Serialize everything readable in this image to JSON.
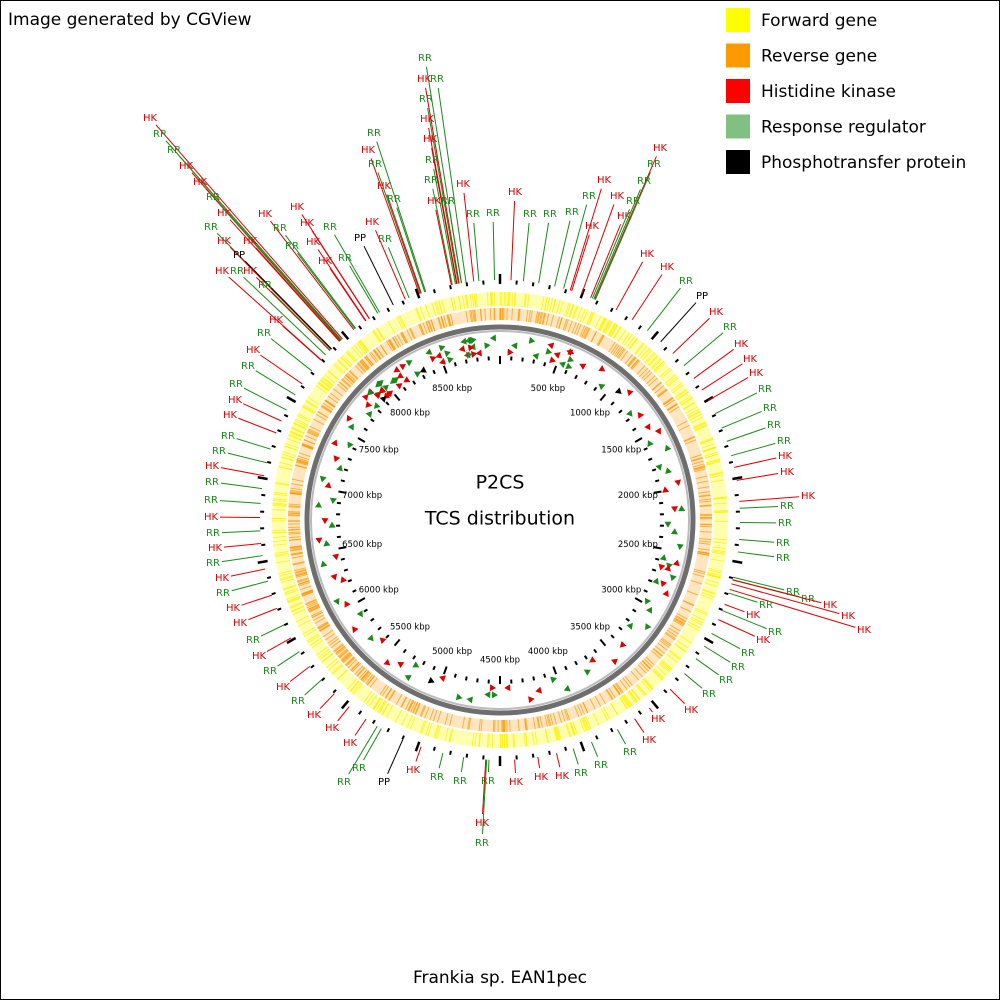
{
  "header": {
    "title": "Image generated by CGView"
  },
  "legend": [
    {
      "label": "Forward gene",
      "color": "#ffff00"
    },
    {
      "label": "Reverse gene",
      "color": "#ff9900"
    },
    {
      "label": "Histidine kinase",
      "color": "#ff0000"
    },
    {
      "label": "Response regulator",
      "color": "#80c080"
    },
    {
      "label": "Phosphotransfer protein",
      "color": "#000000"
    }
  ],
  "map": {
    "title": "P2CS",
    "subtitle": "TCS distribution",
    "scale_labels": [
      "500 kbp",
      "1000 kbp",
      "1500 kbp",
      "2000 kbp",
      "2500 kbp",
      "3000 kbp",
      "3500 kbp",
      "4000 kbp",
      "4500 kbp",
      "5000 kbp",
      "5500 kbp",
      "6000 kbp",
      "6500 kbp",
      "7000 kbp",
      "7500 kbp",
      "8000 kbp",
      "8500 kbp"
    ],
    "features": [
      {
        "label": "HK",
        "color": "#e00000"
      },
      {
        "label": "RR",
        "color": "#1a8a1a"
      },
      {
        "label": "RR",
        "color": "#1a8a1a"
      },
      {
        "label": "HK",
        "color": "#e00000"
      },
      {
        "label": "HK",
        "color": "#e00000"
      },
      {
        "label": "RR",
        "color": "#1a8a1a"
      },
      {
        "label": "HK",
        "color": "#e00000"
      },
      {
        "label": "RR",
        "color": "#1a8a1a"
      },
      {
        "label": "HK",
        "color": "#e00000"
      },
      {
        "label": "PP",
        "color": "#000000"
      },
      {
        "label": "HK",
        "color": "#e00000"
      },
      {
        "label": "HK",
        "color": "#e00000"
      },
      {
        "label": "RR",
        "color": "#1a8a1a"
      },
      {
        "label": "HK",
        "color": "#e00000"
      },
      {
        "label": "RR",
        "color": "#1a8a1a"
      },
      {
        "label": "HK",
        "color": "#e00000"
      },
      {
        "label": "RR",
        "color": "#1a8a1a"
      },
      {
        "label": "HK",
        "color": "#e00000"
      },
      {
        "label": "HK",
        "color": "#e00000"
      },
      {
        "label": "RR",
        "color": "#1a8a1a"
      },
      {
        "label": "HK",
        "color": "#e00000"
      },
      {
        "label": "RR",
        "color": "#1a8a1a"
      },
      {
        "label": "HK",
        "color": "#e00000"
      },
      {
        "label": "RR",
        "color": "#1a8a1a"
      },
      {
        "label": "PP",
        "color": "#000000"
      },
      {
        "label": "HK",
        "color": "#e00000"
      },
      {
        "label": "RR",
        "color": "#1a8a1a"
      },
      {
        "label": "RR",
        "color": "#1a8a1a"
      },
      {
        "label": "HK",
        "color": "#e00000"
      },
      {
        "label": "RR",
        "color": "#1a8a1a"
      },
      {
        "label": "HK",
        "color": "#e00000"
      },
      {
        "label": "RR",
        "color": "#1a8a1a"
      },
      {
        "label": "RR",
        "color": "#1a8a1a"
      },
      {
        "label": "HK",
        "color": "#e00000"
      },
      {
        "label": "RR",
        "color": "#1a8a1a"
      },
      {
        "label": "RR",
        "color": "#1a8a1a"
      },
      {
        "label": "HK",
        "color": "#e00000"
      },
      {
        "label": "HK",
        "color": "#e00000"
      },
      {
        "label": "RR",
        "color": "#1a8a1a"
      },
      {
        "label": "RR",
        "color": "#1a8a1a"
      },
      {
        "label": "HK",
        "color": "#e00000"
      },
      {
        "label": "RR",
        "color": "#1a8a1a"
      },
      {
        "label": "HK",
        "color": "#e00000"
      },
      {
        "label": "RR",
        "color": "#1a8a1a"
      },
      {
        "label": "RR",
        "color": "#1a8a1a"
      },
      {
        "label": "HK",
        "color": "#e00000"
      },
      {
        "label": "RR",
        "color": "#1a8a1a"
      },
      {
        "label": "RR",
        "color": "#1a8a1a"
      },
      {
        "label": "RR",
        "color": "#1a8a1a"
      },
      {
        "label": "RR",
        "color": "#1a8a1a"
      },
      {
        "label": "HK",
        "color": "#e00000"
      },
      {
        "label": "HK",
        "color": "#e00000"
      },
      {
        "label": "HK",
        "color": "#e00000"
      },
      {
        "label": "HK",
        "color": "#e00000"
      },
      {
        "label": "RR",
        "color": "#1a8a1a"
      },
      {
        "label": "RR",
        "color": "#1a8a1a"
      },
      {
        "label": "HK",
        "color": "#e00000"
      },
      {
        "label": "RR",
        "color": "#1a8a1a"
      },
      {
        "label": "HK",
        "color": "#e00000"
      },
      {
        "label": "HK",
        "color": "#e00000"
      },
      {
        "label": "RR",
        "color": "#1a8a1a"
      },
      {
        "label": "PP",
        "color": "#000000"
      },
      {
        "label": "HK",
        "color": "#e00000"
      },
      {
        "label": "RR",
        "color": "#1a8a1a"
      },
      {
        "label": "HK",
        "color": "#e00000"
      },
      {
        "label": "HK",
        "color": "#e00000"
      },
      {
        "label": "RR",
        "color": "#1a8a1a"
      },
      {
        "label": "HK",
        "color": "#e00000"
      },
      {
        "label": "RR",
        "color": "#1a8a1a"
      },
      {
        "label": "RR",
        "color": "#1a8a1a"
      },
      {
        "label": "RR",
        "color": "#1a8a1a"
      },
      {
        "label": "HK",
        "color": "#e00000"
      },
      {
        "label": "HK",
        "color": "#e00000"
      },
      {
        "label": "HK",
        "color": "#e00000"
      },
      {
        "label": "RR",
        "color": "#1a8a1a"
      },
      {
        "label": "RR",
        "color": "#1a8a1a"
      },
      {
        "label": "RR",
        "color": "#1a8a1a"
      },
      {
        "label": "RR",
        "color": "#1a8a1a"
      },
      {
        "label": "RR",
        "color": "#1a8a1a"
      },
      {
        "label": "RR",
        "color": "#1a8a1a"
      },
      {
        "label": "HK",
        "color": "#e00000"
      },
      {
        "label": "HK",
        "color": "#e00000"
      },
      {
        "label": "HK",
        "color": "#e00000"
      },
      {
        "label": "RR",
        "color": "#1a8a1a"
      },
      {
        "label": "RR",
        "color": "#1a8a1a"
      },
      {
        "label": "HK",
        "color": "#e00000"
      },
      {
        "label": "HK",
        "color": "#e00000"
      },
      {
        "label": "RR",
        "color": "#1a8a1a"
      },
      {
        "label": "RR",
        "color": "#1a8a1a"
      },
      {
        "label": "RR",
        "color": "#1a8a1a"
      },
      {
        "label": "RR",
        "color": "#1a8a1a"
      },
      {
        "label": "HK",
        "color": "#e00000"
      },
      {
        "label": "HK",
        "color": "#e00000"
      },
      {
        "label": "HK",
        "color": "#e00000"
      },
      {
        "label": "RR",
        "color": "#1a8a1a"
      },
      {
        "label": "RR",
        "color": "#1a8a1a"
      },
      {
        "label": "RR",
        "color": "#1a8a1a"
      },
      {
        "label": "HK",
        "color": "#e00000"
      },
      {
        "label": "HK",
        "color": "#e00000"
      },
      {
        "label": "HK",
        "color": "#e00000"
      },
      {
        "label": "RR",
        "color": "#1a8a1a"
      },
      {
        "label": "RR",
        "color": "#1a8a1a"
      },
      {
        "label": "HK",
        "color": "#e00000"
      },
      {
        "label": "RR",
        "color": "#1a8a1a"
      },
      {
        "label": "RR",
        "color": "#1a8a1a"
      },
      {
        "label": "HK",
        "color": "#e00000"
      },
      {
        "label": "PP",
        "color": "#000000"
      },
      {
        "label": "RR",
        "color": "#1a8a1a"
      },
      {
        "label": "RR",
        "color": "#1a8a1a"
      },
      {
        "label": "HK",
        "color": "#e00000"
      },
      {
        "label": "HK",
        "color": "#e00000"
      },
      {
        "label": "HK",
        "color": "#e00000"
      },
      {
        "label": "RR",
        "color": "#1a8a1a"
      },
      {
        "label": "HK",
        "color": "#e00000"
      },
      {
        "label": "RR",
        "color": "#1a8a1a"
      },
      {
        "label": "HK",
        "color": "#e00000"
      },
      {
        "label": "RR",
        "color": "#1a8a1a"
      },
      {
        "label": "HK",
        "color": "#e00000"
      },
      {
        "label": "HK",
        "color": "#e00000"
      },
      {
        "label": "RR",
        "color": "#1a8a1a"
      },
      {
        "label": "HK",
        "color": "#e00000"
      },
      {
        "label": "RR",
        "color": "#1a8a1a"
      },
      {
        "label": "HK",
        "color": "#e00000"
      },
      {
        "label": "RR",
        "color": "#1a8a1a"
      },
      {
        "label": "HK",
        "color": "#e00000"
      },
      {
        "label": "RR",
        "color": "#1a8a1a"
      },
      {
        "label": "RR",
        "color": "#1a8a1a"
      },
      {
        "label": "HK",
        "color": "#e00000"
      },
      {
        "label": "RR",
        "color": "#1a8a1a"
      },
      {
        "label": "RR",
        "color": "#1a8a1a"
      },
      {
        "label": "HK",
        "color": "#e00000"
      },
      {
        "label": "HK",
        "color": "#e00000"
      },
      {
        "label": "RR",
        "color": "#1a8a1a"
      },
      {
        "label": "RR",
        "color": "#1a8a1a"
      },
      {
        "label": "HK",
        "color": "#e00000"
      },
      {
        "label": "RR",
        "color": "#1a8a1a"
      },
      {
        "label": "HK",
        "color": "#e00000"
      }
    ]
  },
  "footer": {
    "caption": "Frankia sp. EAN1pec"
  }
}
